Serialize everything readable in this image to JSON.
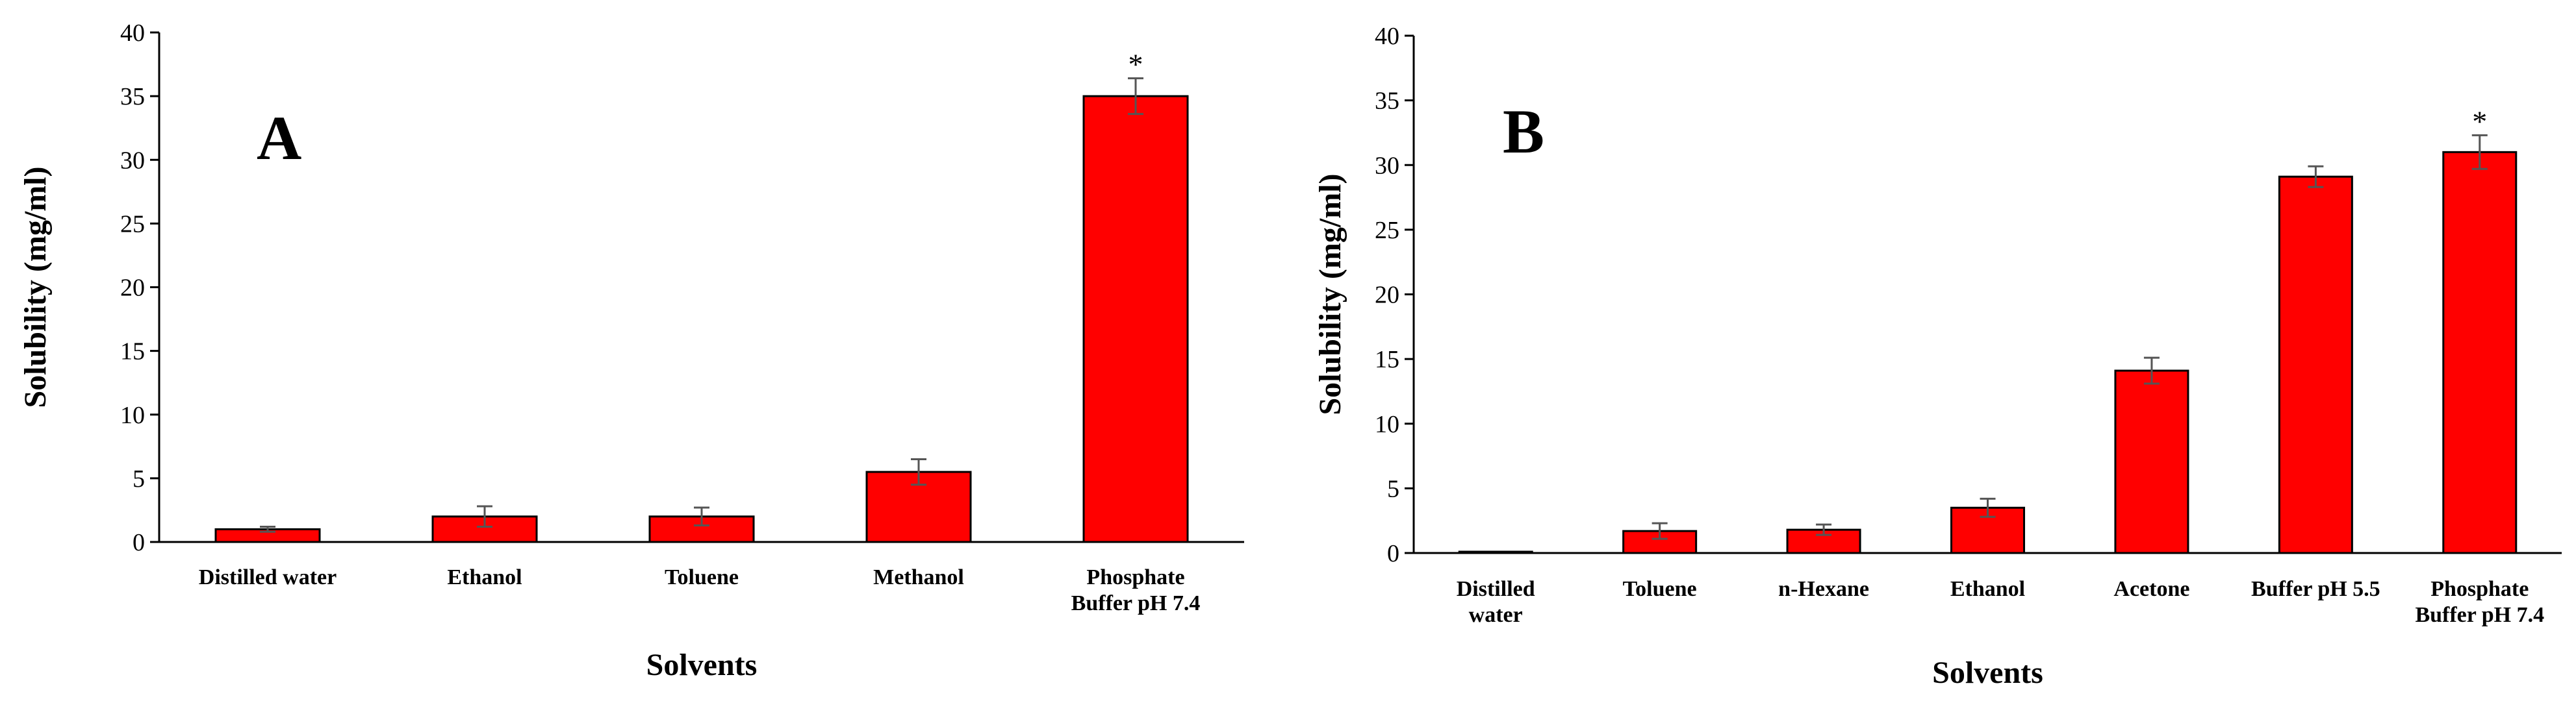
{
  "charts": [
    {
      "panel_label": "A",
      "type": "bar",
      "ylabel": "Solubility (mg/ml)",
      "xlabel": "Solvents",
      "ylim": [
        0,
        40
      ],
      "yticks": [
        0,
        5,
        10,
        15,
        20,
        25,
        30,
        35,
        40
      ],
      "bar_color": "#ff0000",
      "categories": [
        [
          "Distilled water"
        ],
        [
          "Ethanol"
        ],
        [
          "Toluene"
        ],
        [
          "Methanol"
        ],
        [
          "Phosphate",
          "Buffer pH 7.4"
        ]
      ],
      "values": [
        1.0,
        2.0,
        2.0,
        5.5,
        35.0
      ],
      "errors": [
        0.2,
        0.8,
        0.7,
        1.0,
        1.4
      ],
      "significance": [
        "",
        "",
        "",
        "",
        "*"
      ]
    },
    {
      "panel_label": "B",
      "type": "bar",
      "ylabel": "Solubility (mg/ml)",
      "xlabel": "Solvents",
      "ylim": [
        0,
        40
      ],
      "yticks": [
        0,
        5,
        10,
        15,
        20,
        25,
        30,
        35,
        40
      ],
      "bar_color": "#ff0000",
      "categories": [
        [
          "Distilled",
          "water"
        ],
        [
          "Toluene"
        ],
        [
          "n-Hexane"
        ],
        [
          "Ethanol"
        ],
        [
          "Acetone"
        ],
        [
          "Buffer pH 5.5"
        ],
        [
          "Phosphate",
          "Buffer pH 7.4"
        ]
      ],
      "values": [
        0.1,
        1.7,
        1.8,
        3.5,
        14.1,
        29.1,
        31.0
      ],
      "errors": [
        0.0,
        0.6,
        0.4,
        0.7,
        1.0,
        0.8,
        1.3
      ],
      "significance": [
        "",
        "",
        "",
        "",
        "",
        "",
        "*"
      ]
    }
  ]
}
